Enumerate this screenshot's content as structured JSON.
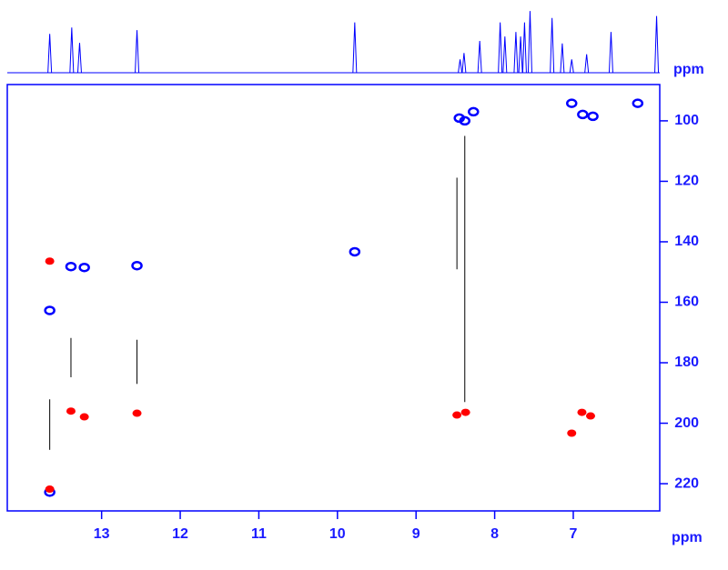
{
  "chart_data": {
    "type": "nmr2d",
    "x_label": "ppm",
    "y_label": "ppm",
    "xlim": [
      14.2,
      5.9
    ],
    "ylim": [
      88,
      229
    ],
    "xticks": [
      13,
      12,
      11,
      10,
      9,
      8,
      7
    ],
    "yticks": [
      100,
      120,
      140,
      160,
      180,
      200,
      220
    ],
    "axis_color": "#0000ff",
    "series": [
      {
        "color": "#0000ff",
        "x": [
          13.66,
          13.39,
          13.22,
          12.55,
          9.78,
          8.45,
          8.38,
          8.27,
          7.02,
          6.88,
          6.75,
          6.18,
          13.66
        ],
        "values": [
          162.7,
          148.2,
          148.5,
          147.9,
          143.3,
          99.1,
          100,
          97,
          94.2,
          97.9,
          98.5,
          94.2,
          222.8
        ]
      },
      {
        "color": "#ff0000",
        "x": [
          13.66,
          13.39,
          13.22,
          12.55,
          8.48,
          8.37,
          6.89,
          6.78,
          7.02,
          13.66
        ],
        "values": [
          146.4,
          196,
          197.9,
          196.7,
          197.3,
          196.4,
          196.4,
          197.6,
          203.3,
          221.8
        ]
      }
    ],
    "lines": {
      "color": "#000000",
      "x": [
        13.66,
        13.39,
        12.55,
        8.48,
        8.38
      ],
      "from": [
        192.1,
        171.8,
        172.4,
        118.8,
        105
      ],
      "to": [
        208.8,
        184.8,
        187,
        149.1,
        193
      ]
    },
    "projection": {
      "color": "#0000ff",
      "ylim": [
        0,
        100
      ],
      "x": [
        13.66,
        13.38,
        13.28,
        12.55,
        9.78,
        8.44,
        8.39,
        8.19,
        7.93,
        7.87,
        7.73,
        7.67,
        7.62,
        7.55,
        7.27,
        7.14,
        7.02,
        6.83,
        6.52,
        5.94
      ],
      "values": [
        61,
        71,
        47,
        67,
        79,
        21,
        31,
        50,
        79,
        57,
        64,
        57,
        79,
        97,
        86,
        46,
        21,
        29,
        64,
        89
      ]
    }
  }
}
